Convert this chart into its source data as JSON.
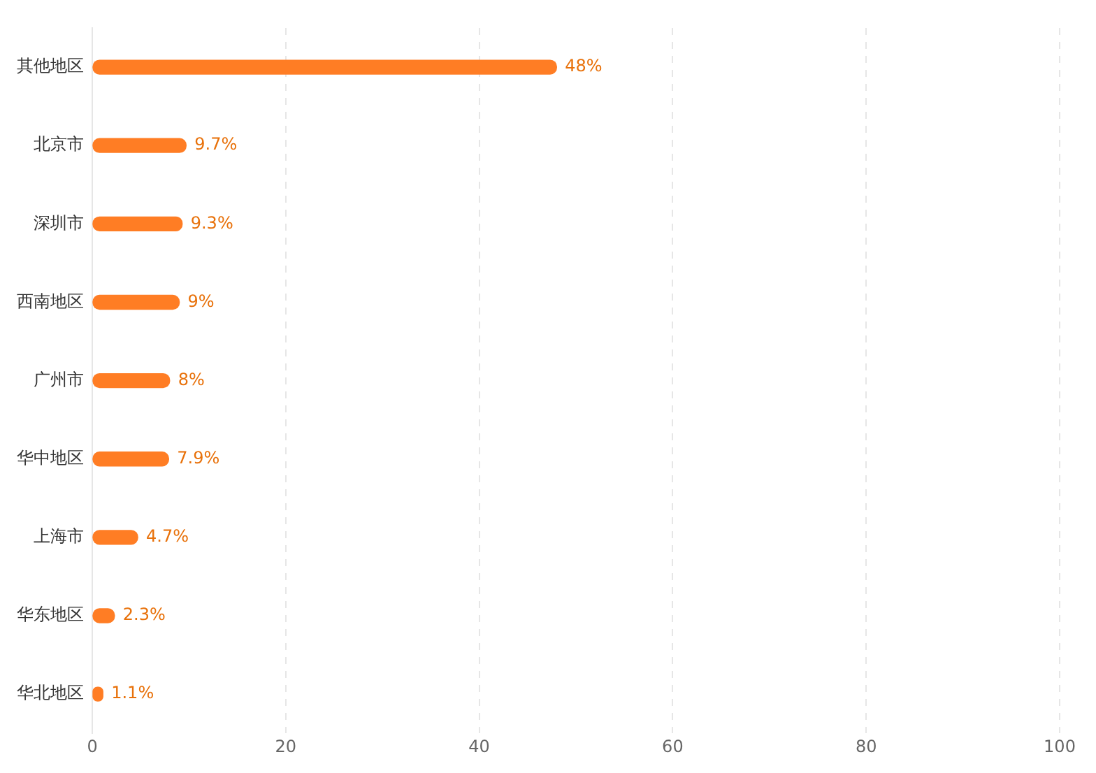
{
  "chart_data": {
    "type": "bar",
    "orientation": "horizontal",
    "categories": [
      "其他地区",
      "北京市",
      "深圳市",
      "西南地区",
      "广州市",
      "华中地区",
      "上海市",
      "华东地区",
      "华北地区"
    ],
    "values": [
      48,
      9.7,
      9.3,
      9,
      8,
      7.9,
      4.7,
      2.3,
      1.1
    ],
    "value_labels": [
      "48%",
      "9.7%",
      "9.3%",
      "9%",
      "8%",
      "7.9%",
      "4.7%",
      "2.3%",
      "1.1%"
    ],
    "color": "#ff7d24",
    "xlim": [
      0,
      100
    ],
    "xticks": [
      0,
      20,
      40,
      60,
      80,
      100
    ],
    "grid": "x",
    "legend": false
  }
}
